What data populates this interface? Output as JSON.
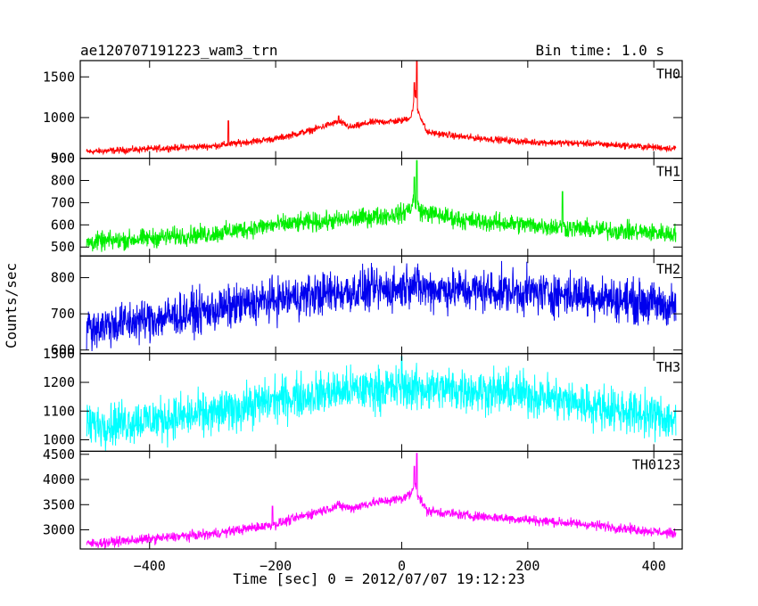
{
  "chart_data": {
    "type": "line",
    "title_left": "ae120707191223_wam3_trn",
    "title_right": "Bin time: 1.0 s",
    "xlabel": "Time [sec] 0 = 2012/07/07 19:12:23",
    "ylabel": "Counts/sec",
    "xlim": [
      -510,
      445
    ],
    "x_ticks": [
      -400,
      -200,
      0,
      200,
      400
    ],
    "grid": false,
    "panels": [
      {
        "name": "TH0",
        "color": "#ff0000",
        "ylim": [
          500,
          1700
        ],
        "y_ticks": [
          500,
          1000,
          1500
        ],
        "profile": [
          [
            -500,
            580
          ],
          [
            -300,
            650
          ],
          [
            -200,
            740
          ],
          [
            -150,
            830
          ],
          [
            -100,
            950
          ],
          [
            -80,
            880
          ],
          [
            -50,
            940
          ],
          [
            0,
            960
          ],
          [
            15,
            1010
          ],
          [
            22,
            1300
          ],
          [
            25,
            1100
          ],
          [
            40,
            820
          ],
          [
            100,
            760
          ],
          [
            200,
            700
          ],
          [
            300,
            680
          ],
          [
            435,
            620
          ]
        ],
        "noise": 40,
        "spikes": [
          [
            -275,
            960
          ],
          [
            -100,
            1020
          ],
          [
            20,
            1430
          ],
          [
            24,
            1700
          ]
        ]
      },
      {
        "name": "TH1",
        "color": "#00ee00",
        "ylim": [
          460,
          900
        ],
        "y_ticks": [
          500,
          600,
          700,
          800,
          900
        ],
        "profile": [
          [
            -500,
            520
          ],
          [
            -300,
            560
          ],
          [
            -200,
            600
          ],
          [
            -100,
            620
          ],
          [
            0,
            650
          ],
          [
            15,
            680
          ],
          [
            20,
            720
          ],
          [
            30,
            660
          ],
          [
            100,
            620
          ],
          [
            200,
            600
          ],
          [
            300,
            580
          ],
          [
            435,
            560
          ]
        ],
        "noise": 42,
        "spikes": [
          [
            20,
            815
          ],
          [
            24,
            890
          ],
          [
            255,
            750
          ]
        ]
      },
      {
        "name": "TH2",
        "color": "#0000ee",
        "ylim": [
          590,
          860
        ],
        "y_ticks": [
          600,
          700,
          800
        ],
        "profile": [
          [
            -500,
            660
          ],
          [
            -300,
            710
          ],
          [
            -200,
            740
          ],
          [
            -100,
            760
          ],
          [
            0,
            770
          ],
          [
            15,
            790
          ],
          [
            30,
            770
          ],
          [
            100,
            765
          ],
          [
            200,
            760
          ],
          [
            300,
            750
          ],
          [
            435,
            720
          ]
        ],
        "noise": 58,
        "spikes": []
      },
      {
        "name": "TH3",
        "color": "#00ffff",
        "ylim": [
          960,
          1300
        ],
        "y_ticks": [
          1000,
          1100,
          1200,
          1300
        ],
        "profile": [
          [
            -500,
            1050
          ],
          [
            -300,
            1090
          ],
          [
            -200,
            1140
          ],
          [
            -100,
            1170
          ],
          [
            0,
            1180
          ],
          [
            100,
            1175
          ],
          [
            200,
            1160
          ],
          [
            300,
            1120
          ],
          [
            435,
            1070
          ]
        ],
        "noise": 75,
        "spikes": [
          [
            0,
            1290
          ]
        ]
      },
      {
        "name": "TH0123",
        "color": "#ff00ff",
        "ylim": [
          2620,
          4560
        ],
        "y_ticks": [
          3000,
          3500,
          4000,
          4500
        ],
        "profile": [
          [
            -500,
            2720
          ],
          [
            -300,
            2920
          ],
          [
            -200,
            3110
          ],
          [
            -150,
            3300
          ],
          [
            -100,
            3480
          ],
          [
            -80,
            3430
          ],
          [
            -50,
            3530
          ],
          [
            0,
            3620
          ],
          [
            15,
            3720
          ],
          [
            22,
            3950
          ],
          [
            25,
            3700
          ],
          [
            40,
            3380
          ],
          [
            100,
            3290
          ],
          [
            200,
            3200
          ],
          [
            300,
            3100
          ],
          [
            435,
            2920
          ]
        ],
        "noise": 95,
        "spikes": [
          [
            20,
            4260
          ],
          [
            24,
            4520
          ],
          [
            -205,
            3470
          ]
        ]
      }
    ]
  }
}
